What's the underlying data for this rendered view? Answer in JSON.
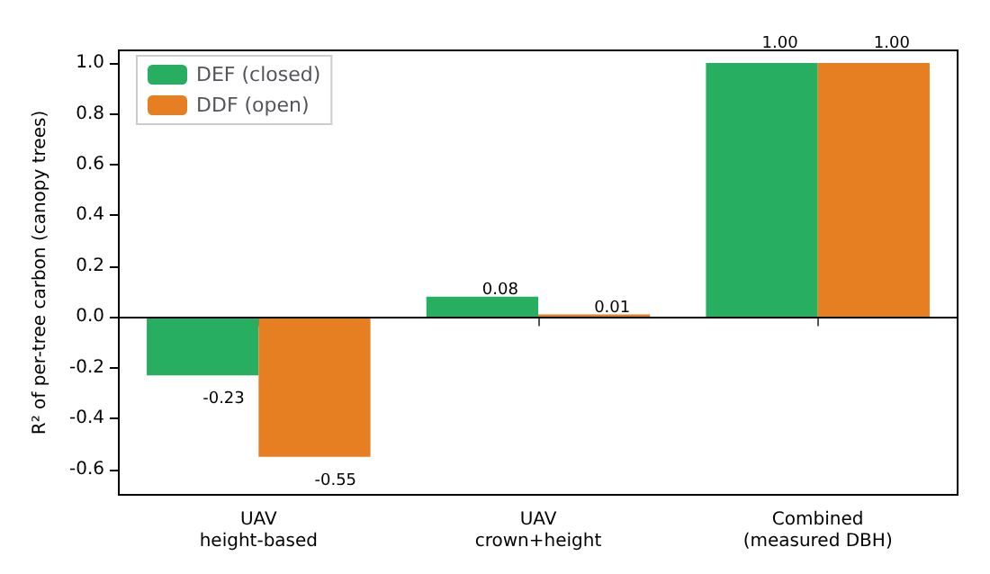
{
  "chart_data": {
    "type": "bar",
    "ylabel": "R² of per-tree carbon (canopy trees)",
    "categories": [
      "UAV\nheight-based",
      "UAV\ncrown+height",
      "Combined\n(measured DBH)"
    ],
    "series": [
      {
        "name": "DEF (closed)",
        "color": "#27ae60",
        "values": [
          -0.23,
          0.08,
          1.0
        ],
        "value_labels": [
          "-0.23",
          "0.08",
          "1.00"
        ]
      },
      {
        "name": "DDF (open)",
        "color": "#e67e22",
        "values": [
          -0.55,
          0.01,
          1.0
        ],
        "value_labels": [
          "-0.55",
          "0.01",
          "1.00"
        ]
      }
    ],
    "ylim": [
      -0.7,
      1.05
    ],
    "yticks": [
      {
        "value": -0.6,
        "label": "-0.6"
      },
      {
        "value": -0.4,
        "label": "-0.4"
      },
      {
        "value": -0.2,
        "label": "-0.2"
      },
      {
        "value": 0,
        "label": "0.0"
      },
      {
        "value": 0.2,
        "label": "0.2"
      },
      {
        "value": 0.4,
        "label": "0.4"
      },
      {
        "value": 0.6,
        "label": "0.6"
      },
      {
        "value": 0.8,
        "label": "0.8"
      },
      {
        "value": 1,
        "label": "1.0"
      }
    ],
    "ref_lines": [
      {
        "axis": "y",
        "value": 0,
        "color": "#000000"
      }
    ],
    "legend": "top left",
    "grid": false
  }
}
